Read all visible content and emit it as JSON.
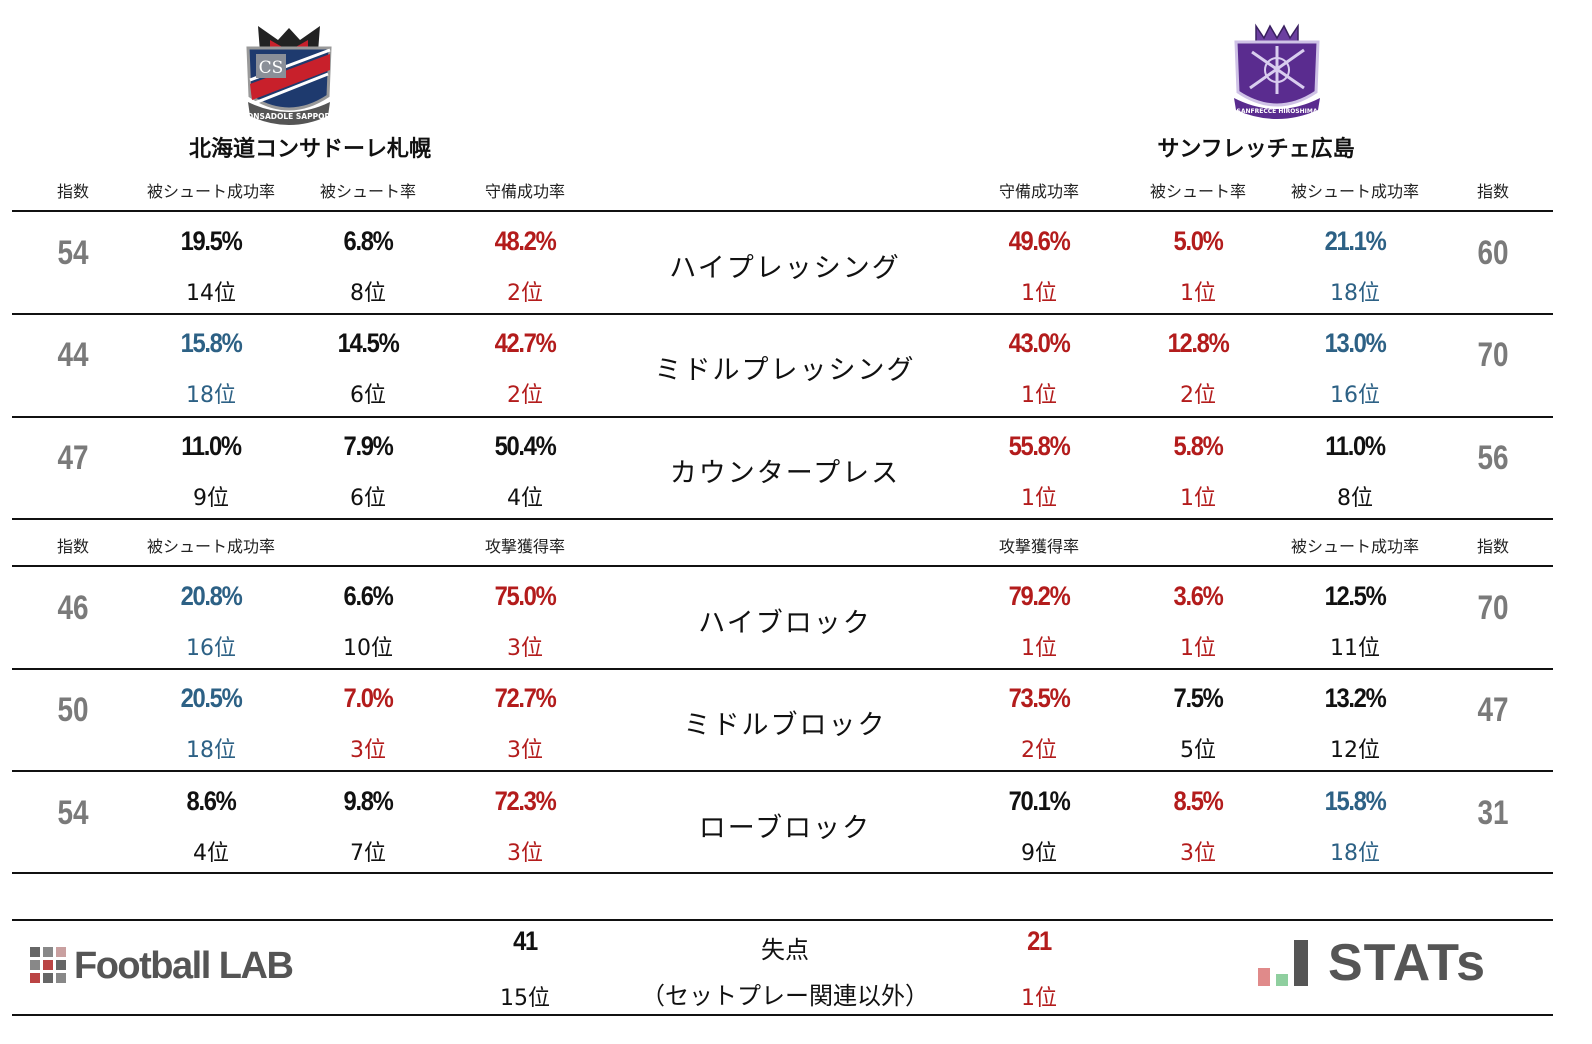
{
  "teams": {
    "home": {
      "name": "北海道コンサドーレ札幌",
      "emblem_text": "CS",
      "emblem_caption": "CONSADOLE SAPPORO"
    },
    "away": {
      "name": "サンフレッチェ広島",
      "emblem_caption": "SANFRECCE HIROSHIMA"
    }
  },
  "colors": {
    "red": "#b31c1c",
    "blue": "#2d6185",
    "black": "#111111",
    "index_gray": "#7a7a7a"
  },
  "headers_defense": {
    "home": [
      "指数",
      "被シュート成功率",
      "被シュート率",
      "守備成功率"
    ],
    "away": [
      "守備成功率",
      "被シュート率",
      "被シュート成功率",
      "指数"
    ]
  },
  "headers_block": {
    "home": [
      "指数",
      "被シュート成功率",
      "",
      "攻撃獲得率"
    ],
    "away": [
      "攻撃獲得率",
      "",
      "被シュート成功率",
      "指数"
    ]
  },
  "rows": [
    {
      "category": "ハイプレッシング",
      "home_index": "54",
      "home": [
        {
          "v": "19.5%",
          "r": "14位",
          "c": "black"
        },
        {
          "v": "6.8%",
          "r": "8位",
          "c": "black"
        },
        {
          "v": "48.2%",
          "r": "2位",
          "c": "red"
        }
      ],
      "away": [
        {
          "v": "49.6%",
          "r": "1位",
          "c": "red"
        },
        {
          "v": "5.0%",
          "r": "1位",
          "c": "red"
        },
        {
          "v": "21.1%",
          "r": "18位",
          "c": "blue"
        }
      ],
      "away_index": "60"
    },
    {
      "category": "ミドルプレッシング",
      "home_index": "44",
      "home": [
        {
          "v": "15.8%",
          "r": "18位",
          "c": "blue"
        },
        {
          "v": "14.5%",
          "r": "6位",
          "c": "black"
        },
        {
          "v": "42.7%",
          "r": "2位",
          "c": "red"
        }
      ],
      "away": [
        {
          "v": "43.0%",
          "r": "1位",
          "c": "red"
        },
        {
          "v": "12.8%",
          "r": "2位",
          "c": "red"
        },
        {
          "v": "13.0%",
          "r": "16位",
          "c": "blue"
        }
      ],
      "away_index": "70"
    },
    {
      "category": "カウンタープレス",
      "home_index": "47",
      "home": [
        {
          "v": "11.0%",
          "r": "9位",
          "c": "black"
        },
        {
          "v": "7.9%",
          "r": "6位",
          "c": "black"
        },
        {
          "v": "50.4%",
          "r": "4位",
          "c": "black"
        }
      ],
      "away": [
        {
          "v": "55.8%",
          "r": "1位",
          "c": "red"
        },
        {
          "v": "5.8%",
          "r": "1位",
          "c": "red"
        },
        {
          "v": "11.0%",
          "r": "8位",
          "c": "black"
        }
      ],
      "away_index": "56"
    },
    {
      "category": "ハイブロック",
      "home_index": "46",
      "home": [
        {
          "v": "20.8%",
          "r": "16位",
          "c": "blue"
        },
        {
          "v": "6.6%",
          "r": "10位",
          "c": "black"
        },
        {
          "v": "75.0%",
          "r": "3位",
          "c": "red"
        }
      ],
      "away": [
        {
          "v": "79.2%",
          "r": "1位",
          "c": "red"
        },
        {
          "v": "3.6%",
          "r": "1位",
          "c": "red"
        },
        {
          "v": "12.5%",
          "r": "11位",
          "c": "black"
        }
      ],
      "away_index": "70"
    },
    {
      "category": "ミドルブロック",
      "home_index": "50",
      "home": [
        {
          "v": "20.5%",
          "r": "18位",
          "c": "blue"
        },
        {
          "v": "7.0%",
          "r": "3位",
          "c": "red"
        },
        {
          "v": "72.7%",
          "r": "3位",
          "c": "red"
        }
      ],
      "away": [
        {
          "v": "73.5%",
          "r": "2位",
          "c": "red"
        },
        {
          "v": "7.5%",
          "r": "5位",
          "c": "black"
        },
        {
          "v": "13.2%",
          "r": "12位",
          "c": "black"
        }
      ],
      "away_index": "47"
    },
    {
      "category": "ローブロック",
      "home_index": "54",
      "home": [
        {
          "v": "8.6%",
          "r": "4位",
          "c": "black"
        },
        {
          "v": "9.8%",
          "r": "7位",
          "c": "black"
        },
        {
          "v": "72.3%",
          "r": "3位",
          "c": "red"
        }
      ],
      "away": [
        {
          "v": "70.1%",
          "r": "9位",
          "c": "black"
        },
        {
          "v": "8.5%",
          "r": "3位",
          "c": "red"
        },
        {
          "v": "15.8%",
          "r": "18位",
          "c": "blue"
        }
      ],
      "away_index": "31"
    }
  ],
  "footer": {
    "label_line1": "失点",
    "label_line2": "（セットプレー関連以外）",
    "home_value": "41",
    "home_rank": "15位",
    "away_value": "21",
    "away_rank": "1位"
  },
  "logos": {
    "left": "Football LAB",
    "right": "STATs"
  }
}
